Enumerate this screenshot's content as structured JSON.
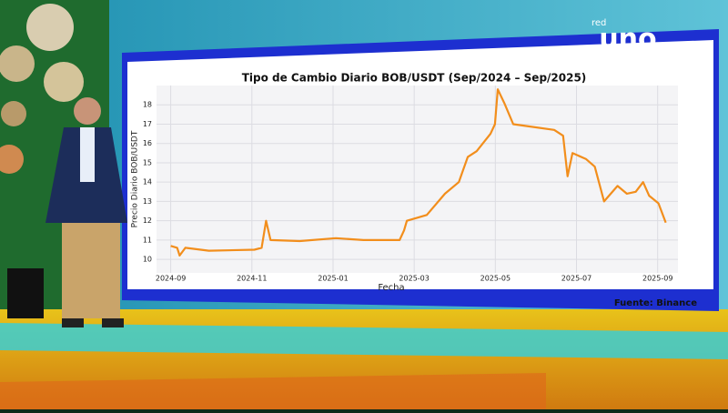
{
  "channel_logo": {
    "small": "red",
    "main": "uno"
  },
  "chart_data": {
    "type": "line",
    "title": "Tipo de Cambio Diario BOB/USDT (Sep/2024 – Sep/2025)",
    "x_label": "Fecha",
    "y_label": "Precio Diario BOB/USDT",
    "source": "Fuente: Binance",
    "x": [
      0,
      0.16,
      0.22,
      0.36,
      0.94,
      2.06,
      2.24,
      2.35,
      2.46,
      3.18,
      4.07,
      4.75,
      5.64,
      5.75,
      5.82,
      6.31,
      6.76,
      7.1,
      7.32,
      7.54,
      7.88,
      7.99,
      8.06,
      8.22,
      8.44,
      8.78,
      9.45,
      9.67,
      9.78,
      9.9,
      10.23,
      10.45,
      10.68,
      11.01,
      11.24,
      11.46,
      11.64,
      11.79,
      12.02,
      12.2
    ],
    "series": [
      {
        "name": "BOB/USDT",
        "color": "#f28e1c",
        "values": [
          10.7,
          10.6,
          10.2,
          10.6,
          10.45,
          10.5,
          10.6,
          12.0,
          11.0,
          10.95,
          11.1,
          11.0,
          11.0,
          11.5,
          12.0,
          12.3,
          13.4,
          14.0,
          15.3,
          15.6,
          16.5,
          17.0,
          18.8,
          18.1,
          17.0,
          16.9,
          16.7,
          16.4,
          14.3,
          15.5,
          15.2,
          14.8,
          13.0,
          13.8,
          13.4,
          13.5,
          14.0,
          13.3,
          12.9,
          11.9
        ]
      }
    ],
    "xlim": [
      -0.35,
      12.5
    ],
    "xticks": [
      {
        "value": 0,
        "label": "2024-09"
      },
      {
        "value": 2,
        "label": "2024-11"
      },
      {
        "value": 4,
        "label": "2025-01"
      },
      {
        "value": 6,
        "label": "2025-03"
      },
      {
        "value": 8,
        "label": "2025-05"
      },
      {
        "value": 10,
        "label": "2025-07"
      },
      {
        "value": 12,
        "label": "2025-09"
      }
    ],
    "ylim": [
      9.3,
      19.0
    ],
    "yticks": [
      10,
      11,
      12,
      13,
      14,
      15,
      16,
      17,
      18
    ],
    "grid": true
  }
}
